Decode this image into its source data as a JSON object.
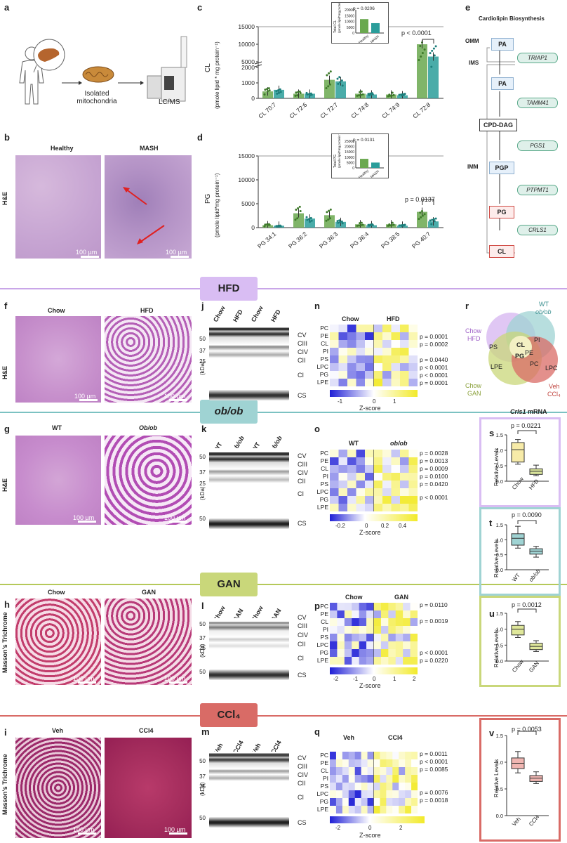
{
  "panels": {
    "a": "a",
    "b": "b",
    "c": "c",
    "d": "d",
    "e": "e",
    "f": "f",
    "g": "g",
    "h": "h",
    "i": "i",
    "j": "j",
    "k": "k",
    "l": "l",
    "m": "m",
    "n": "n",
    "o": "o",
    "p": "p",
    "q": "q",
    "r": "r",
    "s": "s",
    "t": "t",
    "u": "u",
    "v": "v"
  },
  "colors": {
    "healthy": "#6aa84f",
    "mash": "#2a9d9a",
    "hfd": "#d6b4f0",
    "obob": "#8fcfcf",
    "gan": "#c9d77a",
    "ccl4": "#d96b66",
    "hfd_line": "#c9a6e8",
    "obob_line": "#7cc2c2",
    "gan_line": "#b5c95a",
    "ccl4_line": "#d96b66"
  },
  "panel_a": {
    "isolated": "Isolated",
    "mitochondria": "mitochondria",
    "lcms": "LC/MS"
  },
  "panel_b": {
    "healthy": "Healthy",
    "mash": "MASH",
    "stain": "H&E",
    "scale": "100 µm"
  },
  "panel_c": {
    "y_title": "CL",
    "y_unit": "(pmole lipid * mg protein⁻¹)",
    "pvalue": "p < 0.0001",
    "inset": {
      "p": "p = 0.0206",
      "ylabel": "Total CL",
      "yunit": "(pmole lipid*mg protein⁻¹)",
      "x1": "Healthy",
      "x2": "MASH",
      "ticks": [
        "20000",
        "15000",
        "10000",
        "5000",
        "0"
      ]
    },
    "yticks": [
      "15000",
      "10000",
      "5000",
      "2000",
      "1000",
      "0"
    ]
  },
  "panel_d": {
    "y_title": "PG",
    "y_unit": "(pmole lipid*mg protein⁻¹)",
    "pvalue": "p = 0.0137",
    "inset": {
      "p": "p = 0.0131",
      "ylabel": "Total PG",
      "yunit": "(pmole lipid*mg protein⁻¹)",
      "x1": "Healthy",
      "x2": "MASH",
      "ticks": [
        "25000",
        "20000",
        "15000",
        "10000",
        "5000",
        "0"
      ]
    },
    "yticks": [
      "15000",
      "10000",
      "5000",
      "0"
    ]
  },
  "chart_data": [
    {
      "type": "bar",
      "title": "CL",
      "ylabel": "(pmole lipid * mg protein-1)",
      "categories": [
        "CL 70:7",
        "CL 72:6",
        "CL 72:7",
        "CL 74:8",
        "CL 74:9",
        "CL 72:8"
      ],
      "series": [
        {
          "name": "Healthy",
          "values": [
            450,
            300,
            1200,
            300,
            250,
            10000
          ]
        },
        {
          "name": "MASH",
          "values": [
            550,
            300,
            1100,
            250,
            200,
            6500
          ]
        }
      ],
      "ylim": [
        0,
        15000
      ]
    },
    {
      "type": "bar",
      "title": "PG",
      "ylabel": "(pmole lipid*mg protein-1)",
      "categories": [
        "PG 34:1",
        "PG 36:2",
        "PG 36:3",
        "PG 36:4",
        "PG 38:5",
        "PG 40:7"
      ],
      "series": [
        {
          "name": "Healthy",
          "values": [
            500,
            3000,
            2600,
            700,
            700,
            3300
          ]
        },
        {
          "name": "MASH",
          "values": [
            400,
            1900,
            1200,
            500,
            400,
            1300
          ]
        }
      ],
      "ylim": [
        0,
        15000
      ]
    },
    {
      "type": "bar",
      "title": "Total CL",
      "categories": [
        "Healthy",
        "MASH"
      ],
      "values": [
        12000,
        8500
      ],
      "ylim": [
        0,
        20000
      ]
    },
    {
      "type": "bar",
      "title": "Total PG",
      "categories": [
        "Healthy",
        "MASH"
      ],
      "values": [
        8500,
        5000
      ],
      "ylim": [
        0,
        25000
      ]
    },
    {
      "type": "box",
      "title": "Crls1 mRNA HFD",
      "ylabel": "Relative Levels",
      "categories": [
        "Chow",
        "HFD"
      ],
      "boxes": [
        {
          "q1": 0.62,
          "median": 1.02,
          "q3": 1.25,
          "min": 0.55,
          "max": 1.35
        },
        {
          "q1": 0.22,
          "median": 0.32,
          "q3": 0.4,
          "min": 0.18,
          "max": 0.52
        }
      ],
      "ylim": [
        0,
        1.5
      ]
    },
    {
      "type": "box",
      "title": "Crls1 mRNA ob/ob",
      "ylabel": "Relative Levels",
      "categories": [
        "WT",
        "ob/ob"
      ],
      "boxes": [
        {
          "q1": 0.82,
          "median": 1.05,
          "q3": 1.2,
          "min": 0.72,
          "max": 1.45
        },
        {
          "q1": 0.52,
          "median": 0.62,
          "q3": 0.7,
          "min": 0.42,
          "max": 0.78
        }
      ],
      "ylim": [
        0,
        1.5
      ]
    },
    {
      "type": "box",
      "title": "Crls1 mRNA GAN",
      "ylabel": "Relative Levels",
      "categories": [
        "Chow",
        "GAN"
      ],
      "boxes": [
        {
          "q1": 0.82,
          "median": 1.0,
          "q3": 1.12,
          "min": 0.74,
          "max": 1.24
        },
        {
          "q1": 0.36,
          "median": 0.46,
          "q3": 0.56,
          "min": 0.3,
          "max": 0.64
        }
      ],
      "ylim": [
        0,
        1.5
      ]
    },
    {
      "type": "box",
      "title": "Crls1 mRNA CCl4",
      "ylabel": "Relative Levels",
      "categories": [
        "Veh",
        "CCl4"
      ],
      "boxes": [
        {
          "q1": 0.88,
          "median": 0.98,
          "q3": 1.08,
          "min": 0.8,
          "max": 1.2
        },
        {
          "q1": 0.64,
          "median": 0.7,
          "q3": 0.75,
          "min": 0.6,
          "max": 0.82
        }
      ],
      "ylim": [
        0,
        1.5
      ]
    }
  ],
  "panel_e": {
    "title": "Cardiolipin Biosynthesis",
    "omm": "OMM",
    "ims": "IMS",
    "imm": "IMM",
    "nodes": [
      "PA",
      "PA",
      "CPD-DAG",
      "PGP",
      "PG",
      "CL"
    ],
    "enzymes": [
      "TRIAP1",
      "TAMM41",
      "PGS1",
      "PTPMT1",
      "CRLS1"
    ]
  },
  "banners": {
    "hfd": "HFD",
    "obob": "ob/ob",
    "gan": "GAN",
    "ccl4": "CCl₄"
  },
  "histology": {
    "f": {
      "left": "Chow",
      "right": "HFD",
      "stain": "H&E",
      "scale": "100 µm"
    },
    "g": {
      "left": "WT",
      "right": "Ob/ob",
      "stain": "H&E",
      "scale": "100 µm"
    },
    "h": {
      "left": "Chow",
      "right": "GAN",
      "stain": "Masson's Trichrome",
      "scale": "100 µm"
    },
    "i": {
      "left": "Veh",
      "right": "CCl4",
      "stain": "Masson's Trichrome",
      "scale": "100 µm"
    }
  },
  "blots": {
    "kda": "(kDa)",
    "j": {
      "lanes": [
        "Chow",
        "HFD",
        "Chow",
        "HFD"
      ]
    },
    "k": {
      "lanes": [
        "WT",
        "ob/ob",
        "WT",
        "ob/ob"
      ]
    },
    "l": {
      "lanes": [
        "Chow",
        "GAN",
        "Chow",
        "GAN"
      ]
    },
    "m": {
      "lanes": [
        "Veh",
        "CCl4",
        "Veh",
        "CCl4"
      ]
    },
    "mw": [
      "50",
      "37",
      "25",
      "50"
    ],
    "complexes": [
      "CV",
      "CIII",
      "CIV",
      "CII",
      "CI",
      "CS"
    ]
  },
  "heatmaps": {
    "rows": [
      "PC",
      "PE",
      "CL",
      "PI",
      "PS",
      "LPC",
      "PG",
      "LPE"
    ],
    "zlabel": "Z-score",
    "n": {
      "g1": "Chow",
      "g2": "HFD",
      "pvals": [
        "p = 0.0001",
        "p = 0.0002",
        "p = 0.0440",
        "p < 0.0001",
        "p < 0.0001",
        "p = 0.0001"
      ],
      "ticks": [
        "-1",
        "0",
        "1"
      ]
    },
    "o": {
      "g1": "WT",
      "g2": "ob/ob",
      "pvals": [
        "p = 0.0028",
        "p = 0.0013",
        "p = 0.0009",
        "p = 0.0100",
        "p = 0.0420",
        "p < 0.0001"
      ],
      "ticks": [
        "-0.2",
        "0",
        "0.2",
        "0.4"
      ]
    },
    "p": {
      "g1": "Chow",
      "g2": "GAN",
      "pvals": [
        "p = 0.0110",
        "p = 0.0019",
        "p < 0.0001",
        "p = 0.0220"
      ],
      "ticks": [
        "-2",
        "-1",
        "0",
        "1",
        "2"
      ]
    },
    "q": {
      "g1": "Veh",
      "g2": "CCl4",
      "pvals": [
        "p = 0.0011",
        "p < 0.0001",
        "p = 0.0085",
        "p = 0.0076",
        "p = 0.0018"
      ],
      "ticks": [
        "-2",
        "0",
        "2"
      ]
    }
  },
  "venn": {
    "labels": {
      "wt": "WT",
      "obob": "ob/ob",
      "chow_hfd1": "Chow",
      "chow_hfd2": "HFD",
      "chow_gan1": "Chow",
      "chow_gan2": "GAN",
      "veh1": "Veh",
      "veh2": "CCl₄"
    },
    "lipids": {
      "ps": "PS",
      "pi": "PI",
      "pe": "PE",
      "cl": "CL",
      "pg": "PG",
      "lpe": "LPE",
      "pc": "PC",
      "lpc": "LPC"
    }
  },
  "mrna": {
    "title_gene": "Crls1",
    "title_rest": " mRNA",
    "ylabel": "Relative Levels",
    "s": {
      "p": "p = 0.0221",
      "x1": "Chow",
      "x2": "HFD"
    },
    "t": {
      "p": "p = 0.0090",
      "x1": "WT",
      "x2": "ob/ob"
    },
    "u": {
      "p": "p = 0.0012",
      "x1": "Chow",
      "x2": "GAN"
    },
    "v": {
      "p": "p = 0.0053",
      "x1": "Veh",
      "x2": "CCl4"
    },
    "ticks": [
      "1.5",
      "1.0",
      "0.5",
      "0.0"
    ]
  }
}
